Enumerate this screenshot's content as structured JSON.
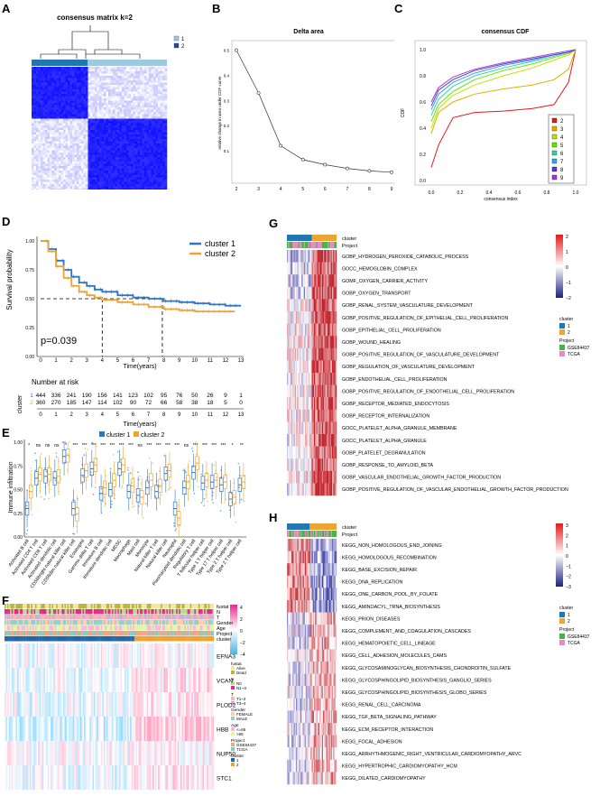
{
  "panels": {
    "A": {
      "label": "A",
      "title": "consensus matrix k=2",
      "legend": [
        "1",
        "2"
      ],
      "colors": {
        "c1": "#9ecae1",
        "c2": "#1f4e9c",
        "high": "#1515ff",
        "low": "#ffffff"
      }
    },
    "B": {
      "label": "B",
      "title": "Delta area",
      "xlabel": "k",
      "ylabel": "relative change in area under CDF curve"
    },
    "C": {
      "label": "C",
      "title": "consensus CDF",
      "xlabel": "consensus index",
      "ylabel": "CDF",
      "legend": [
        "2",
        "3",
        "4",
        "5",
        "6",
        "7",
        "8",
        "9"
      ],
      "legend_colors": [
        "#e41a1c",
        "#e6ab02",
        "#b8e600",
        "#66e600",
        "#33d6a8",
        "#3aa0f0",
        "#5a3ad6",
        "#a23ad6"
      ]
    },
    "D": {
      "label": "D",
      "ylabel": "Survival probability",
      "xlabel": "Time(years)",
      "pvalue": "p=0.039",
      "legend": [
        "cluster 1",
        "cluster 2"
      ],
      "colors": [
        "#2a76c8",
        "#f0a430"
      ],
      "risk_title": "Number at risk",
      "risk_axis_label": "cluster",
      "risk_rows": [
        {
          "name": "1",
          "values": [
            "444",
            "336",
            "241",
            "190",
            "156",
            "141",
            "123",
            "102",
            "95",
            "76",
            "50",
            "26",
            "9",
            "1"
          ]
        },
        {
          "name": "2",
          "values": [
            "360",
            "270",
            "185",
            "147",
            "114",
            "102",
            "90",
            "72",
            "66",
            "58",
            "38",
            "18",
            "5",
            "0"
          ]
        }
      ],
      "risk_times": [
        "0",
        "1",
        "2",
        "3",
        "4",
        "5",
        "6",
        "7",
        "8",
        "9",
        "10",
        "11",
        "12",
        "13"
      ]
    },
    "E": {
      "label": "E",
      "ylabel": "Immune infiltration",
      "legend": [
        "cluster 1",
        "cluster 2"
      ],
      "colors": [
        "#2a76c8",
        "#f0a430"
      ]
    },
    "F": {
      "label": "F",
      "annotations": [
        "fustat",
        "N",
        "T",
        "Gender",
        "Age",
        "Project",
        "cluster"
      ],
      "genes": [
        "EFNA3",
        "VCAN",
        "PLOD2",
        "HBB",
        "NUP50",
        "STC1"
      ],
      "legend_blocks": [
        {
          "title": "fustat",
          "items": [
            "Alive",
            "Dead"
          ]
        },
        {
          "title": "N",
          "items": [
            "N0",
            "N1~3"
          ]
        },
        {
          "title": "T",
          "items": [
            "T1~2",
            "T3~4"
          ]
        },
        {
          "title": "Gender",
          "items": [
            "FEMALE",
            "MALE"
          ]
        },
        {
          "title": "Age",
          "items": [
            "<=65",
            ">65"
          ]
        },
        {
          "title": "Project",
          "items": [
            "GSE84437",
            "TCGA"
          ]
        },
        {
          "title": "cluster",
          "items": [
            "1",
            "2"
          ]
        }
      ],
      "scale": [
        "4",
        "2",
        "0",
        "−2",
        "−4"
      ]
    },
    "G": {
      "label": "G",
      "annotations": [
        "cluster",
        "Project"
      ],
      "terms": [
        "GOBP_HYDROGEN_PEROXIDE_CATABOLIC_PROCESS",
        "GOCC_HEMOGLOBIN_COMPLEX",
        "GOMF_OXYGEN_CARRIER_ACTIVITY",
        "GOBP_OXYGEN_TRANSPORT",
        "GOBP_RENAL_SYSTEM_VASCULATURE_DEVELOPMENT",
        "GOBP_POSITIVE_REGULATION_OF_EPITHELIAL_CELL_PROLIFERATION",
        "GOBP_EPITHELIAL_CELL_PROLIFERATION",
        "GOBP_WOUND_HEALING",
        "GOBP_POSITIVE_REGULATION_OF_VASCULATURE_DEVELOPMENT",
        "GOBP_REGULATION_OF_VASCULATURE_DEVELOPMENT",
        "GOBP_ENDOTHELIAL_CELL_PROLIFERATION",
        "GOBP_POSITIVE_REGULATION_OF_ENDOTHELIAL_CELL_PROLIFERATION",
        "GOBP_RECEPTOR_MEDIATED_ENDOCYTOSIS",
        "GOBP_RECEPTOR_INTERNALIZATION",
        "GOCC_PLATELET_ALPHA_GRANULE_MEMBRANE",
        "GOCC_PLATELET_ALPHA_GRANULE",
        "GOBP_PLATELET_DEGRANULATION",
        "GOBP_RESPONSE_TO_AMYLOID_BETA",
        "GOBP_VASCULAR_ENDOTHELIAL_GROWTH_FACTOR_PRODUCTION",
        "GOBP_POSITIVE_REGULATION_OF_VASCULAR_ENDOTHELIAL_GROWTH_FACTOR_PRODUCTION"
      ],
      "scale": [
        "2",
        "1",
        "0",
        "−1",
        "−2"
      ],
      "legend_cluster_title": "cluster",
      "legend_cluster": [
        "1",
        "2"
      ],
      "legend_project_title": "Project",
      "legend_project": [
        "GSE84437",
        "TCGA"
      ]
    },
    "H": {
      "label": "H",
      "annotations": [
        "cluster",
        "Project"
      ],
      "terms": [
        "KEGG_NON_HOMOLOGOUS_END_JOINING",
        "KEGG_HOMOLOGOUS_RECOMBINATION",
        "KEGG_BASE_EXCISION_REPAIR",
        "KEGG_DNA_REPLICATION",
        "KEGG_ONE_CARBON_POOL_BY_FOLATE",
        "KEGG_AMINOACYL_TRNA_BIOSYNTHESIS",
        "KEGG_PRION_DISEASES",
        "KEGG_COMPLEMENT_AND_COAGULATION_CASCADES",
        "KEGG_HEMATOPOIETIC_CELL_LINEAGE",
        "KEGG_CELL_ADHESION_MOLECULES_CAMS",
        "KEGG_GLYCOSAMINOGLYCAN_BIOSYNTHESIS_CHONDROITIN_SULFATE",
        "KEGG_GLYCOSPHINGOLIPID_BIOSYNTHESIS_GANGLIO_SERIES",
        "KEGG_GLYCOSPHINGOLIPID_BIOSYNTHESIS_GLOBO_SERIES",
        "KEGG_RENAL_CELL_CARCINOMA",
        "KEGG_TGF_BETA_SIGNALING_PATHWAY",
        "KEGG_ECM_RECEPTOR_INTERACTION",
        "KEGG_FOCAL_ADHESION",
        "KEGG_ARRHYTHMOGENIC_RIGHT_VENTRICULAR_CARDIOMYOPATHY_ARVC",
        "KEGG_HYPERTROPHIC_CARDIOMYOPATHY_HCM",
        "KEGG_DILATED_CARDIOMYOPATHY"
      ],
      "scale": [
        "3",
        "2",
        "1",
        "0",
        "−1",
        "−2",
        "−3"
      ],
      "legend_cluster_title": "cluster",
      "legend_cluster": [
        "1",
        "2"
      ],
      "legend_project_title": "Project",
      "legend_project": [
        "GSE84437",
        "TCGA"
      ]
    }
  },
  "chart_data": [
    {
      "panel": "B",
      "type": "line",
      "title": "Delta area",
      "xlabel": "k",
      "ylabel": "relative change in area under CDF curve",
      "x": [
        2,
        3,
        4,
        5,
        6,
        7,
        8,
        9
      ],
      "values": [
        0.5,
        0.33,
        0.12,
        0.065,
        0.045,
        0.03,
        0.02,
        0.015
      ],
      "xlim": [
        2,
        9
      ],
      "ylim": [
        0,
        0.5
      ],
      "yticks": [
        "0.1",
        "0.2",
        "0.3",
        "0.4",
        "0.5"
      ]
    },
    {
      "panel": "C",
      "type": "line",
      "title": "consensus CDF",
      "xlabel": "consensus index",
      "ylabel": "CDF",
      "xticks": [
        "0.0",
        "0.2",
        "0.4",
        "0.6",
        "0.8",
        "1.0"
      ],
      "yticks": [
        "0.0",
        "0.2",
        "0.4",
        "0.6",
        "0.8",
        "1.0"
      ],
      "series": [
        {
          "name": "2",
          "x": [
            0,
            0.05,
            0.15,
            0.3,
            0.5,
            0.7,
            0.85,
            0.95,
            1.0
          ],
          "values": [
            0.1,
            0.27,
            0.48,
            0.52,
            0.53,
            0.55,
            0.58,
            0.75,
            1.0
          ]
        },
        {
          "name": "3",
          "x": [
            0,
            0.05,
            0.15,
            0.3,
            0.5,
            0.7,
            0.85,
            0.95,
            1.0
          ],
          "values": [
            0.36,
            0.52,
            0.6,
            0.66,
            0.7,
            0.73,
            0.77,
            0.85,
            1.0
          ]
        },
        {
          "name": "4",
          "x": [
            0,
            0.05,
            0.15,
            0.3,
            0.5,
            0.7,
            0.85,
            0.95,
            1.0
          ],
          "values": [
            0.4,
            0.55,
            0.65,
            0.73,
            0.8,
            0.86,
            0.92,
            0.96,
            1.0
          ]
        },
        {
          "name": "5",
          "x": [
            0,
            0.05,
            0.15,
            0.3,
            0.5,
            0.7,
            0.85,
            0.95,
            1.0
          ],
          "values": [
            0.45,
            0.58,
            0.68,
            0.77,
            0.84,
            0.89,
            0.94,
            0.97,
            1.0
          ]
        },
        {
          "name": "6",
          "x": [
            0,
            0.05,
            0.15,
            0.3,
            0.5,
            0.7,
            0.85,
            0.95,
            1.0
          ],
          "values": [
            0.5,
            0.62,
            0.72,
            0.8,
            0.86,
            0.91,
            0.95,
            0.98,
            1.0
          ]
        },
        {
          "name": "7",
          "x": [
            0,
            0.05,
            0.15,
            0.3,
            0.5,
            0.7,
            0.85,
            0.95,
            1.0
          ],
          "values": [
            0.54,
            0.66,
            0.75,
            0.82,
            0.88,
            0.92,
            0.96,
            0.98,
            1.0
          ]
        },
        {
          "name": "8",
          "x": [
            0,
            0.05,
            0.15,
            0.3,
            0.5,
            0.7,
            0.85,
            0.95,
            1.0
          ],
          "values": [
            0.57,
            0.69,
            0.77,
            0.84,
            0.89,
            0.93,
            0.96,
            0.98,
            1.0
          ]
        },
        {
          "name": "9",
          "x": [
            0,
            0.05,
            0.15,
            0.3,
            0.5,
            0.7,
            0.85,
            0.95,
            1.0
          ],
          "values": [
            0.6,
            0.71,
            0.79,
            0.85,
            0.9,
            0.94,
            0.97,
            0.99,
            1.0
          ]
        }
      ]
    },
    {
      "panel": "D",
      "type": "line",
      "xlabel": "Time(years)",
      "ylabel": "Survival probability",
      "xlim": [
        0,
        13
      ],
      "ylim": [
        0,
        1
      ],
      "xticks": [
        "0",
        "1",
        "2",
        "3",
        "4",
        "5",
        "6",
        "7",
        "8",
        "9",
        "10",
        "11",
        "12",
        "13"
      ],
      "yticks": [
        "0.00",
        "0.25",
        "0.50",
        "0.75",
        "1.00"
      ],
      "series": [
        {
          "name": "cluster 1",
          "x": [
            0,
            0.5,
            1,
            1.5,
            2,
            2.5,
            3,
            3.5,
            4,
            5,
            6,
            7,
            8,
            9,
            10,
            11,
            12,
            13
          ],
          "values": [
            1.0,
            0.93,
            0.83,
            0.75,
            0.69,
            0.64,
            0.61,
            0.58,
            0.56,
            0.53,
            0.51,
            0.5,
            0.48,
            0.47,
            0.46,
            0.45,
            0.44,
            0.44
          ]
        },
        {
          "name": "cluster 2",
          "x": [
            0,
            0.5,
            1,
            1.5,
            2,
            2.5,
            3,
            3.5,
            4,
            5,
            6,
            7,
            8,
            9,
            10,
            11,
            12,
            12.5
          ],
          "values": [
            1.0,
            0.91,
            0.78,
            0.68,
            0.61,
            0.56,
            0.53,
            0.51,
            0.49,
            0.47,
            0.45,
            0.43,
            0.41,
            0.4,
            0.39,
            0.39,
            0.39,
            0.39
          ]
        }
      ],
      "median_lines": [
        4.0,
        7.9
      ]
    },
    {
      "panel": "E",
      "type": "box",
      "ylabel": "Immune infiltration",
      "yticks": [
        "0.00",
        "0.25",
        "0.50",
        "0.75",
        "1.00"
      ],
      "significance": [
        "*",
        "ns",
        "ns",
        "ns",
        "*",
        "***",
        "***",
        "***",
        "***",
        "***",
        "***",
        "***",
        "ns",
        "***",
        "***",
        "***",
        "***",
        "ns",
        "***",
        "***",
        "***",
        "***",
        "*",
        "**"
      ],
      "categories": [
        "Activated B cell",
        "Activated CD4 T cell",
        "Activated CD8 T cell",
        "Activated dendritic cell",
        "CD56bright natural killer cell",
        "CD56dim natural killer cell",
        "Eosinophil",
        "Gamma delta T cell",
        "Immature B cell",
        "Immature dendritic cell",
        "MDSC",
        "Macrophage",
        "Mast cell",
        "Monocyte",
        "Natural killer T cell",
        "Natural killer cell",
        "Neutrophil",
        "Plasmacytoid dendritic cell",
        "Regulatory T cell",
        "T follicular helper cell",
        "Type 1 T helper cell",
        "Type 17 T helper cell",
        "Type 2 T helper cell",
        "Type 2 T helper cell "
      ],
      "series": [
        {
          "name": "cluster 1",
          "medians": [
            0.3,
            0.62,
            0.64,
            0.62,
            0.85,
            0.3,
            0.65,
            0.72,
            0.46,
            0.5,
            0.72,
            0.48,
            0.44,
            0.52,
            0.48,
            0.67,
            0.3,
            0.52,
            0.68,
            0.57,
            0.58,
            0.55,
            0.4,
            0.55
          ]
        },
        {
          "name": "cluster 2",
          "medians": [
            0.48,
            0.66,
            0.66,
            0.64,
            0.86,
            0.24,
            0.7,
            0.76,
            0.52,
            0.6,
            0.76,
            0.54,
            0.42,
            0.6,
            0.54,
            0.7,
            0.2,
            0.58,
            0.78,
            0.6,
            0.6,
            0.58,
            0.42,
            0.58
          ]
        }
      ]
    },
    {
      "panel": "G",
      "type": "heatmap",
      "rows": 20,
      "groups": [
        "cluster 1",
        "cluster 2"
      ],
      "value_range": [
        -2,
        2
      ],
      "pattern": "cluster 2 rows mostly high (red), cluster 1 mostly low (blue/white)"
    },
    {
      "panel": "H",
      "type": "heatmap",
      "rows": 20,
      "groups": [
        "cluster 1",
        "cluster 2"
      ],
      "value_range": [
        -3,
        3
      ],
      "pattern": "first rows high in cluster 1, later rows high in cluster 2"
    }
  ]
}
